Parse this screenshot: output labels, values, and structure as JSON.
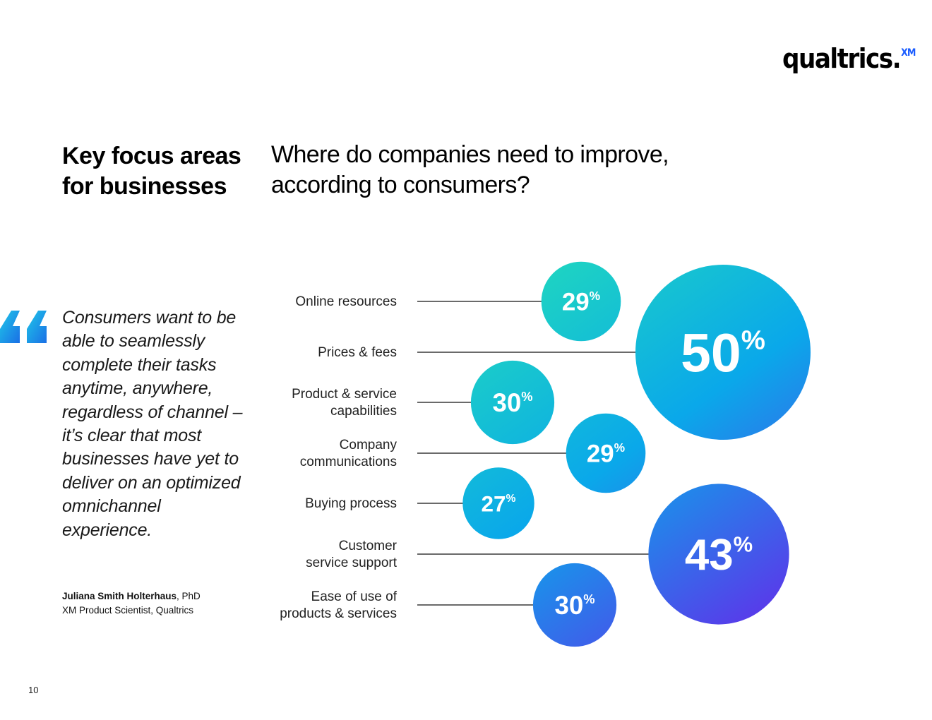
{
  "logo": {
    "text": "qualtrics.",
    "superscript": "XM"
  },
  "section_title": "Key focus areas for businesses",
  "quote": {
    "text": "Consumers want to be able to seamlessly complete their tasks anytime, anywhere, regardless of channel – it’s clear that most businesses have yet to deliver on an optimized omnichannel experience.",
    "author_name": "Juliana Smith Holterhaus",
    "author_suffix": ", PhD",
    "author_title": "XM Product Scientist, Qualtrics"
  },
  "page_number": "10",
  "chart_data": {
    "type": "bubble",
    "title": "Where do companies need to improve, according to consumers?",
    "unit": "%",
    "categories": [
      "Online resources",
      "Prices & fees",
      "Product & service capabilities",
      "Company communications",
      "Buying process",
      "Customer service support",
      "Ease of use of products & services"
    ],
    "values": [
      29,
      50,
      30,
      29,
      27,
      43,
      30
    ],
    "colors": {
      "gradient_start": "#1fd6c0",
      "gradient_mid": "#0aa8ea",
      "gradient_end": "#6a22ea"
    }
  }
}
